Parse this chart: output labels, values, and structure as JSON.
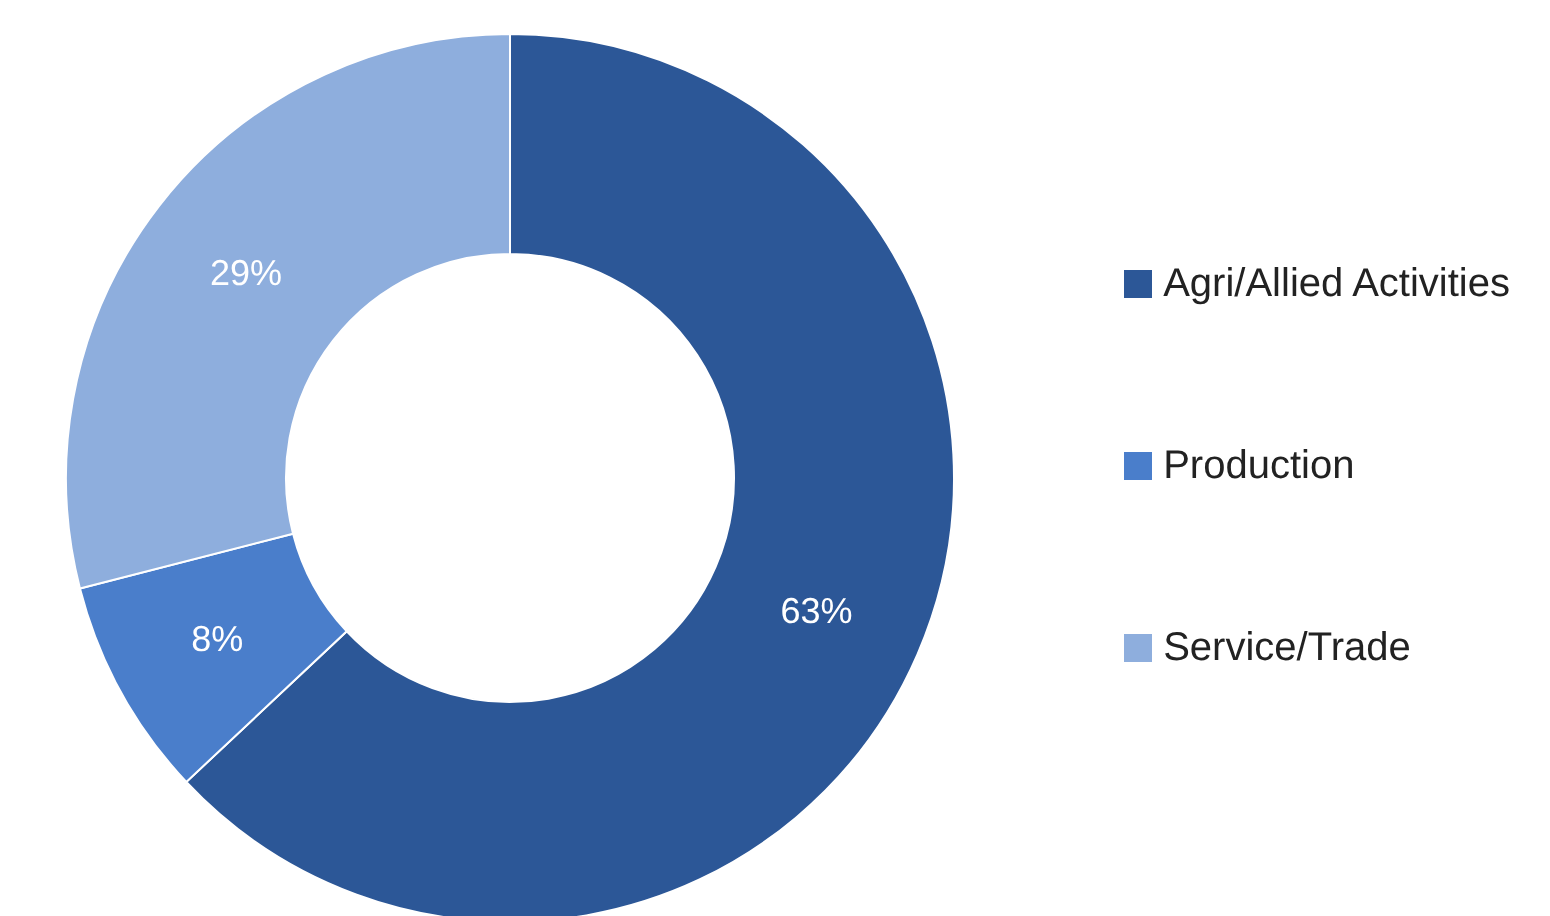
{
  "chart_data": {
    "type": "donut",
    "categories": [
      "Agri/Allied Activities",
      "Production",
      "Service/Trade"
    ],
    "values": [
      63,
      8,
      29
    ],
    "colors": [
      "#2c5797",
      "#4a7ecb",
      "#8eaedd"
    ],
    "value_labels": [
      "63%",
      "8%",
      "29%"
    ],
    "legend": "right"
  }
}
